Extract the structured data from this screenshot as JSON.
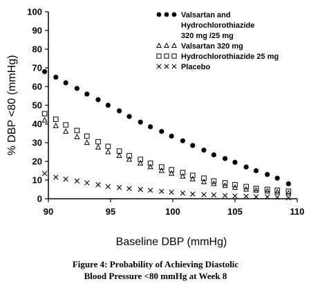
{
  "chart_data": {
    "type": "scatter",
    "xlabel": "Baseline DBP (mmHg)",
    "ylabel": "% DBP <80 (mmHg)",
    "xlim": [
      90,
      110
    ],
    "ylim": [
      0,
      100
    ],
    "x_ticks": [
      "90",
      "95",
      "100",
      "105",
      "110"
    ],
    "y_ticks": [
      "0",
      "10",
      "20",
      "30",
      "40",
      "50",
      "60",
      "70",
      "80",
      "90",
      "100"
    ],
    "grid": false,
    "legend_position": "top-right",
    "x": [
      89.7,
      90.6,
      91.4,
      92.3,
      93.1,
      94.0,
      94.8,
      95.7,
      96.5,
      97.4,
      98.2,
      99.1,
      99.9,
      100.8,
      101.6,
      102.5,
      103.3,
      104.2,
      105.0,
      105.9,
      106.7,
      107.6,
      108.4,
      109.3
    ],
    "series": [
      {
        "name": "Valsartan and Hydrochlorothiazide 320 mg /25 mg",
        "marker": "filled-circle",
        "color": "#000000",
        "values": [
          68,
          65,
          62,
          59,
          56,
          53,
          50,
          47,
          44,
          41,
          38.5,
          36,
          33.5,
          31,
          28.5,
          26,
          23.5,
          21.5,
          19.5,
          17,
          15,
          13,
          11,
          8
        ]
      },
      {
        "name": "Valsartan 320 mg",
        "marker": "open-triangle",
        "color": "#000000",
        "values": [
          42,
          39,
          36,
          33,
          30,
          27.5,
          25,
          23,
          21,
          19,
          17,
          15,
          13.5,
          12,
          10.5,
          9,
          8,
          7,
          6,
          5,
          4.5,
          4,
          3.5,
          3
        ]
      },
      {
        "name": "Hydrochlorothiazide 25 mg",
        "marker": "open-square",
        "color": "#000000",
        "values": [
          45.5,
          42.5,
          39.5,
          36.5,
          33.5,
          30.5,
          28,
          25.5,
          23,
          21,
          19,
          17,
          15.5,
          14,
          12.5,
          11,
          9.5,
          8.5,
          7.5,
          6.5,
          5.5,
          5,
          4.5,
          4
        ]
      },
      {
        "name": "Placebo",
        "marker": "x",
        "color": "#000000",
        "values": [
          13.5,
          11.5,
          10.5,
          9.5,
          8.5,
          7.5,
          6.5,
          6,
          5.5,
          5,
          4.5,
          4,
          3.5,
          3,
          2.5,
          2.2,
          2,
          1.7,
          1.5,
          1.3,
          1.1,
          1,
          0.8,
          0.5
        ]
      }
    ],
    "legend_lines": [
      {
        "text": "Valsartan and",
        "marker": "filled-circle"
      },
      {
        "text": "Hydrochlorothiazide",
        "marker": ""
      },
      {
        "text": "320 mg /25 mg",
        "marker": ""
      },
      {
        "text": "Valsartan 320 mg",
        "marker": "open-triangle"
      },
      {
        "text": "Hydrochlorothiazide 25 mg",
        "marker": "open-square"
      },
      {
        "text": "Placebo",
        "marker": "x"
      }
    ]
  },
  "caption": {
    "line1": "Figure 4: Probability of Achieving Diastolic",
    "line2": "Blood Pressure <80 mmHg at Week 8"
  }
}
